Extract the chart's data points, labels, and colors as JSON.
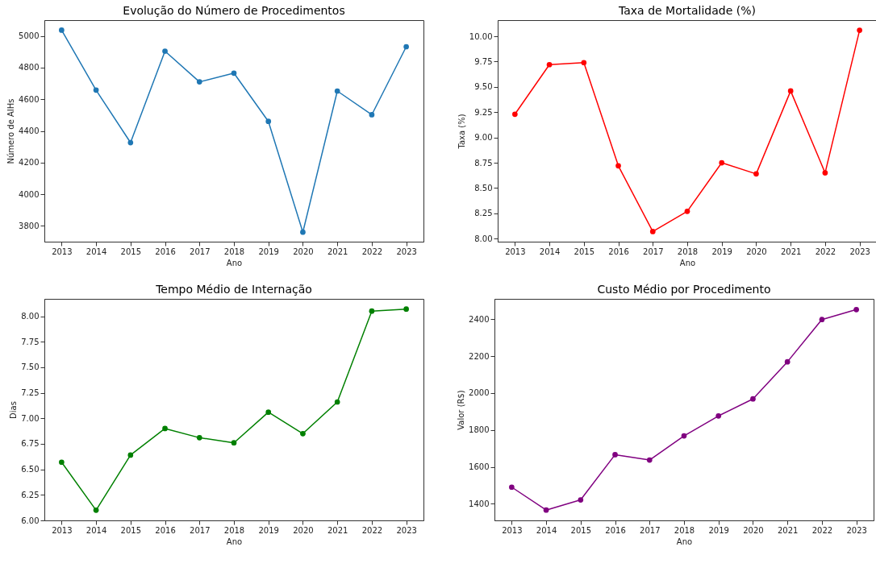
{
  "chart_data": [
    {
      "type": "line",
      "title": "Evolução do Número de Procedimentos",
      "xlabel": "Ano",
      "ylabel": "Número de AIHs",
      "x": [
        2013,
        2014,
        2015,
        2016,
        2017,
        2018,
        2019,
        2020,
        2021,
        2022,
        2023
      ],
      "xlim": [
        2012.5,
        2023.5
      ],
      "xticks": [
        2013,
        2014,
        2015,
        2016,
        2017,
        2018,
        2019,
        2020,
        2021,
        2022,
        2023
      ],
      "ylim": [
        3700,
        5100
      ],
      "yticks": [
        3800,
        4000,
        4200,
        4400,
        4600,
        4800,
        5000
      ],
      "marker": "circle",
      "grid": false,
      "series": [
        {
          "color": "#1f77b4",
          "values": [
            5037,
            4658,
            4326,
            4904,
            4710,
            4765,
            4460,
            3760,
            4652,
            4502,
            4932
          ]
        }
      ]
    },
    {
      "type": "line",
      "title": "Taxa de Mortalidade (%)",
      "xlabel": "Ano",
      "ylabel": "Taxa (%)",
      "x": [
        2013,
        2014,
        2015,
        2016,
        2017,
        2018,
        2019,
        2020,
        2021,
        2022,
        2023
      ],
      "xlim": [
        2012.5,
        2023.5
      ],
      "xticks": [
        2013,
        2014,
        2015,
        2016,
        2017,
        2018,
        2019,
        2020,
        2021,
        2022,
        2023
      ],
      "ylim": [
        7.97,
        10.16
      ],
      "yticks": [
        {
          "value": 8,
          "label": "8.00"
        },
        {
          "value": 8.25,
          "label": "8.25"
        },
        {
          "value": 8.5,
          "label": "8.50"
        },
        {
          "value": 8.75,
          "label": "8.75"
        },
        {
          "value": 9,
          "label": "9.00"
        },
        {
          "value": 9.25,
          "label": "9.25"
        },
        {
          "value": 9.5,
          "label": "9.50"
        },
        {
          "value": 9.75,
          "label": "9.75"
        },
        {
          "value": 10,
          "label": "10.00"
        }
      ],
      "marker": "circle",
      "grid": false,
      "series": [
        {
          "color": "#ff0000",
          "values": [
            9.23,
            9.72,
            9.74,
            8.72,
            8.07,
            8.27,
            8.75,
            8.64,
            9.46,
            8.65,
            10.06
          ]
        }
      ]
    },
    {
      "type": "line",
      "title": "Tempo Médio de Internação",
      "xlabel": "Ano",
      "ylabel": "Dias",
      "x": [
        2013,
        2014,
        2015,
        2016,
        2017,
        2018,
        2019,
        2020,
        2021,
        2022,
        2023
      ],
      "xlim": [
        2012.5,
        2023.5
      ],
      "xticks": [
        2013,
        2014,
        2015,
        2016,
        2017,
        2018,
        2019,
        2020,
        2021,
        2022,
        2023
      ],
      "ylim": [
        6.0,
        8.17
      ],
      "yticks": [
        {
          "value": 6,
          "label": "6.00"
        },
        {
          "value": 6.25,
          "label": "6.25"
        },
        {
          "value": 6.5,
          "label": "6.50"
        },
        {
          "value": 6.75,
          "label": "6.75"
        },
        {
          "value": 7,
          "label": "7.00"
        },
        {
          "value": 7.25,
          "label": "7.25"
        },
        {
          "value": 7.5,
          "label": "7.50"
        },
        {
          "value": 7.75,
          "label": "7.75"
        },
        {
          "value": 8,
          "label": "8.00"
        }
      ],
      "marker": "circle",
      "grid": false,
      "series": [
        {
          "color": "#008000",
          "values": [
            6.57,
            6.1,
            6.64,
            6.9,
            6.81,
            6.76,
            7.06,
            6.85,
            7.16,
            8.05,
            8.07
          ]
        }
      ]
    },
    {
      "type": "line",
      "title": "Custo Médio por Procedimento",
      "xlabel": "Ano",
      "ylabel": "Valor (R$)",
      "x": [
        2013,
        2014,
        2015,
        2016,
        2017,
        2018,
        2019,
        2020,
        2021,
        2022,
        2023
      ],
      "xlim": [
        2012.5,
        2023.5
      ],
      "xticks": [
        2013,
        2014,
        2015,
        2016,
        2017,
        2018,
        2019,
        2020,
        2021,
        2022,
        2023
      ],
      "ylim": [
        1310,
        2510
      ],
      "yticks": [
        1400,
        1600,
        1800,
        2000,
        2200,
        2400
      ],
      "marker": "circle",
      "grid": false,
      "series": [
        {
          "color": "#800080",
          "values": [
            1490,
            1366,
            1421,
            1666,
            1637,
            1768,
            1876,
            1968,
            2169,
            2398,
            2452
          ]
        }
      ]
    }
  ]
}
